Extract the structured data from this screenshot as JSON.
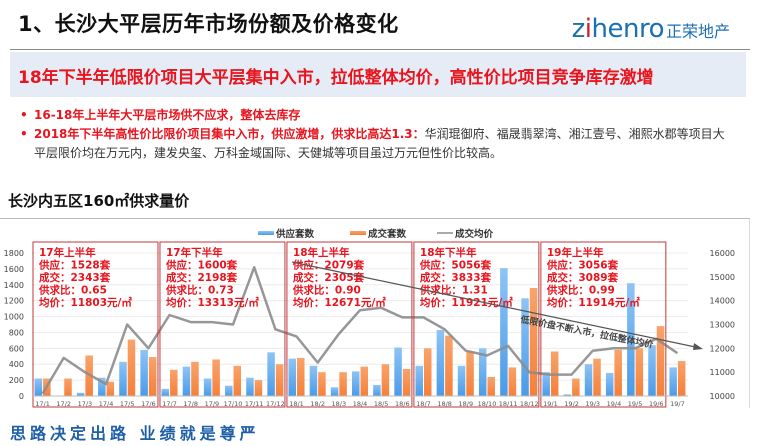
{
  "header": {
    "title": "1、长沙大平层历年市场份额及价格变化",
    "logo_en_prefix": "z",
    "logo_en_i": "i",
    "logo_en_suffix": "henro",
    "logo_cn": "正荣地产"
  },
  "banner": {
    "text": "18年下半年低限价项目大平层集中入市，拉低整体均价，高性价比项目竞争库存激增"
  },
  "bullets": [
    {
      "bold_red": "16-18年上半年大平层市场供不应求，整体去库存",
      "plain": ""
    },
    {
      "bold_red": "2018年下半年高性价比限价项目集中入市，供应激增，供求比高达1.3：",
      "plain": "华润琨御府、福晟翡翠湾、湘江壹号、湘熙水郡等项目大平层限价均在万元内，建发央玺、万科金域国际、天健城等项目虽过万元但性价比较高。"
    }
  ],
  "section_title": "长沙内五区160㎡供求量价",
  "footer": {
    "slogan": "思路决定出路 业绩就是尊严"
  },
  "colors": {
    "supply": "#4a9be8",
    "deal": "#f5803a",
    "price_line": "#8c8c8c",
    "annotation_red": "#e8141e",
    "box_border": "#c0393b",
    "brand_blue": "#1b6fb3"
  },
  "chart_data": {
    "type": "bar+line",
    "title": "长沙内五区160㎡供求量价",
    "legend": [
      "供应套数",
      "成交套数",
      "成交均价"
    ],
    "legend_position": "top",
    "categories": [
      "17/1",
      "17/2",
      "17/3",
      "17/4",
      "17/5",
      "17/6",
      "17/7",
      "17/8",
      "17/9",
      "17/10",
      "17/11",
      "17/12",
      "18/1",
      "18/2",
      "18/3",
      "18/4",
      "18/5",
      "18/6",
      "18/7",
      "18/8",
      "18/9",
      "18/10",
      "18/11",
      "18/12",
      "19/1",
      "19/2",
      "19/3",
      "19/4",
      "19/5",
      "19/6",
      "19/7"
    ],
    "series": [
      {
        "name": "供应套数",
        "type": "bar",
        "axis": "left",
        "values": [
          220,
          0,
          40,
          230,
          430,
          580,
          90,
          370,
          220,
          130,
          230,
          550,
          470,
          380,
          110,
          310,
          140,
          610,
          380,
          830,
          380,
          600,
          1610,
          1230,
          300,
          20,
          400,
          290,
          1420,
          640,
          360
        ]
      },
      {
        "name": "成交套数",
        "type": "bar",
        "axis": "left",
        "values": [
          220,
          220,
          510,
          180,
          710,
          490,
          330,
          430,
          460,
          380,
          200,
          400,
          480,
          300,
          300,
          370,
          400,
          340,
          600,
          760,
          560,
          240,
          360,
          1360,
          560,
          220,
          470,
          580,
          600,
          880,
          440
        ]
      },
      {
        "name": "成交均价",
        "type": "line",
        "axis": "right",
        "values": [
          10100,
          11600,
          11000,
          10500,
          13000,
          12000,
          13400,
          13100,
          13100,
          13000,
          15400,
          12800,
          12500,
          11400,
          12600,
          13600,
          13700,
          13300,
          13300,
          12800,
          11900,
          11700,
          12100,
          11000,
          10900,
          10900,
          11900,
          12000,
          12000,
          12400,
          11800
        ]
      }
    ],
    "y_left": {
      "ticks": [
        0,
        200,
        400,
        600,
        800,
        1000,
        1200,
        1400,
        1600,
        1800
      ],
      "ylim": [
        0,
        1800
      ]
    },
    "y_right": {
      "ticks": [
        10000,
        11000,
        12000,
        13000,
        14000,
        15000,
        16000
      ],
      "ylim": [
        10000,
        16000
      ]
    },
    "grid": true,
    "period_boxes": [
      {
        "title": "17年上半年",
        "supply": "供应：1528套",
        "deal": "成交：2343套",
        "ratio": "供求比：0.65",
        "price": "均价：11803元/㎡"
      },
      {
        "title": "17年下半年",
        "supply": "供应：1600套",
        "deal": "成交：2198套",
        "ratio": "供求比：0.73",
        "price": "均价：13313元/㎡"
      },
      {
        "title": "18年上半年",
        "supply": "供应：2079套",
        "deal": "成交：2305套",
        "ratio": "供求比：0.90",
        "price": "均价：12671元/㎡"
      },
      {
        "title": "18年下半年",
        "supply": "供应：5056套",
        "deal": "成交：3833套",
        "ratio": "供求比：1.31",
        "price": "均价：11921元/㎡"
      },
      {
        "title": "19年上半年",
        "supply": "供应：3056套",
        "deal": "成交：3089套",
        "ratio": "供求比：0.99",
        "price": "均价：11914元/㎡"
      }
    ],
    "annotation": "低限价盘不断入市，拉低整体均价"
  }
}
